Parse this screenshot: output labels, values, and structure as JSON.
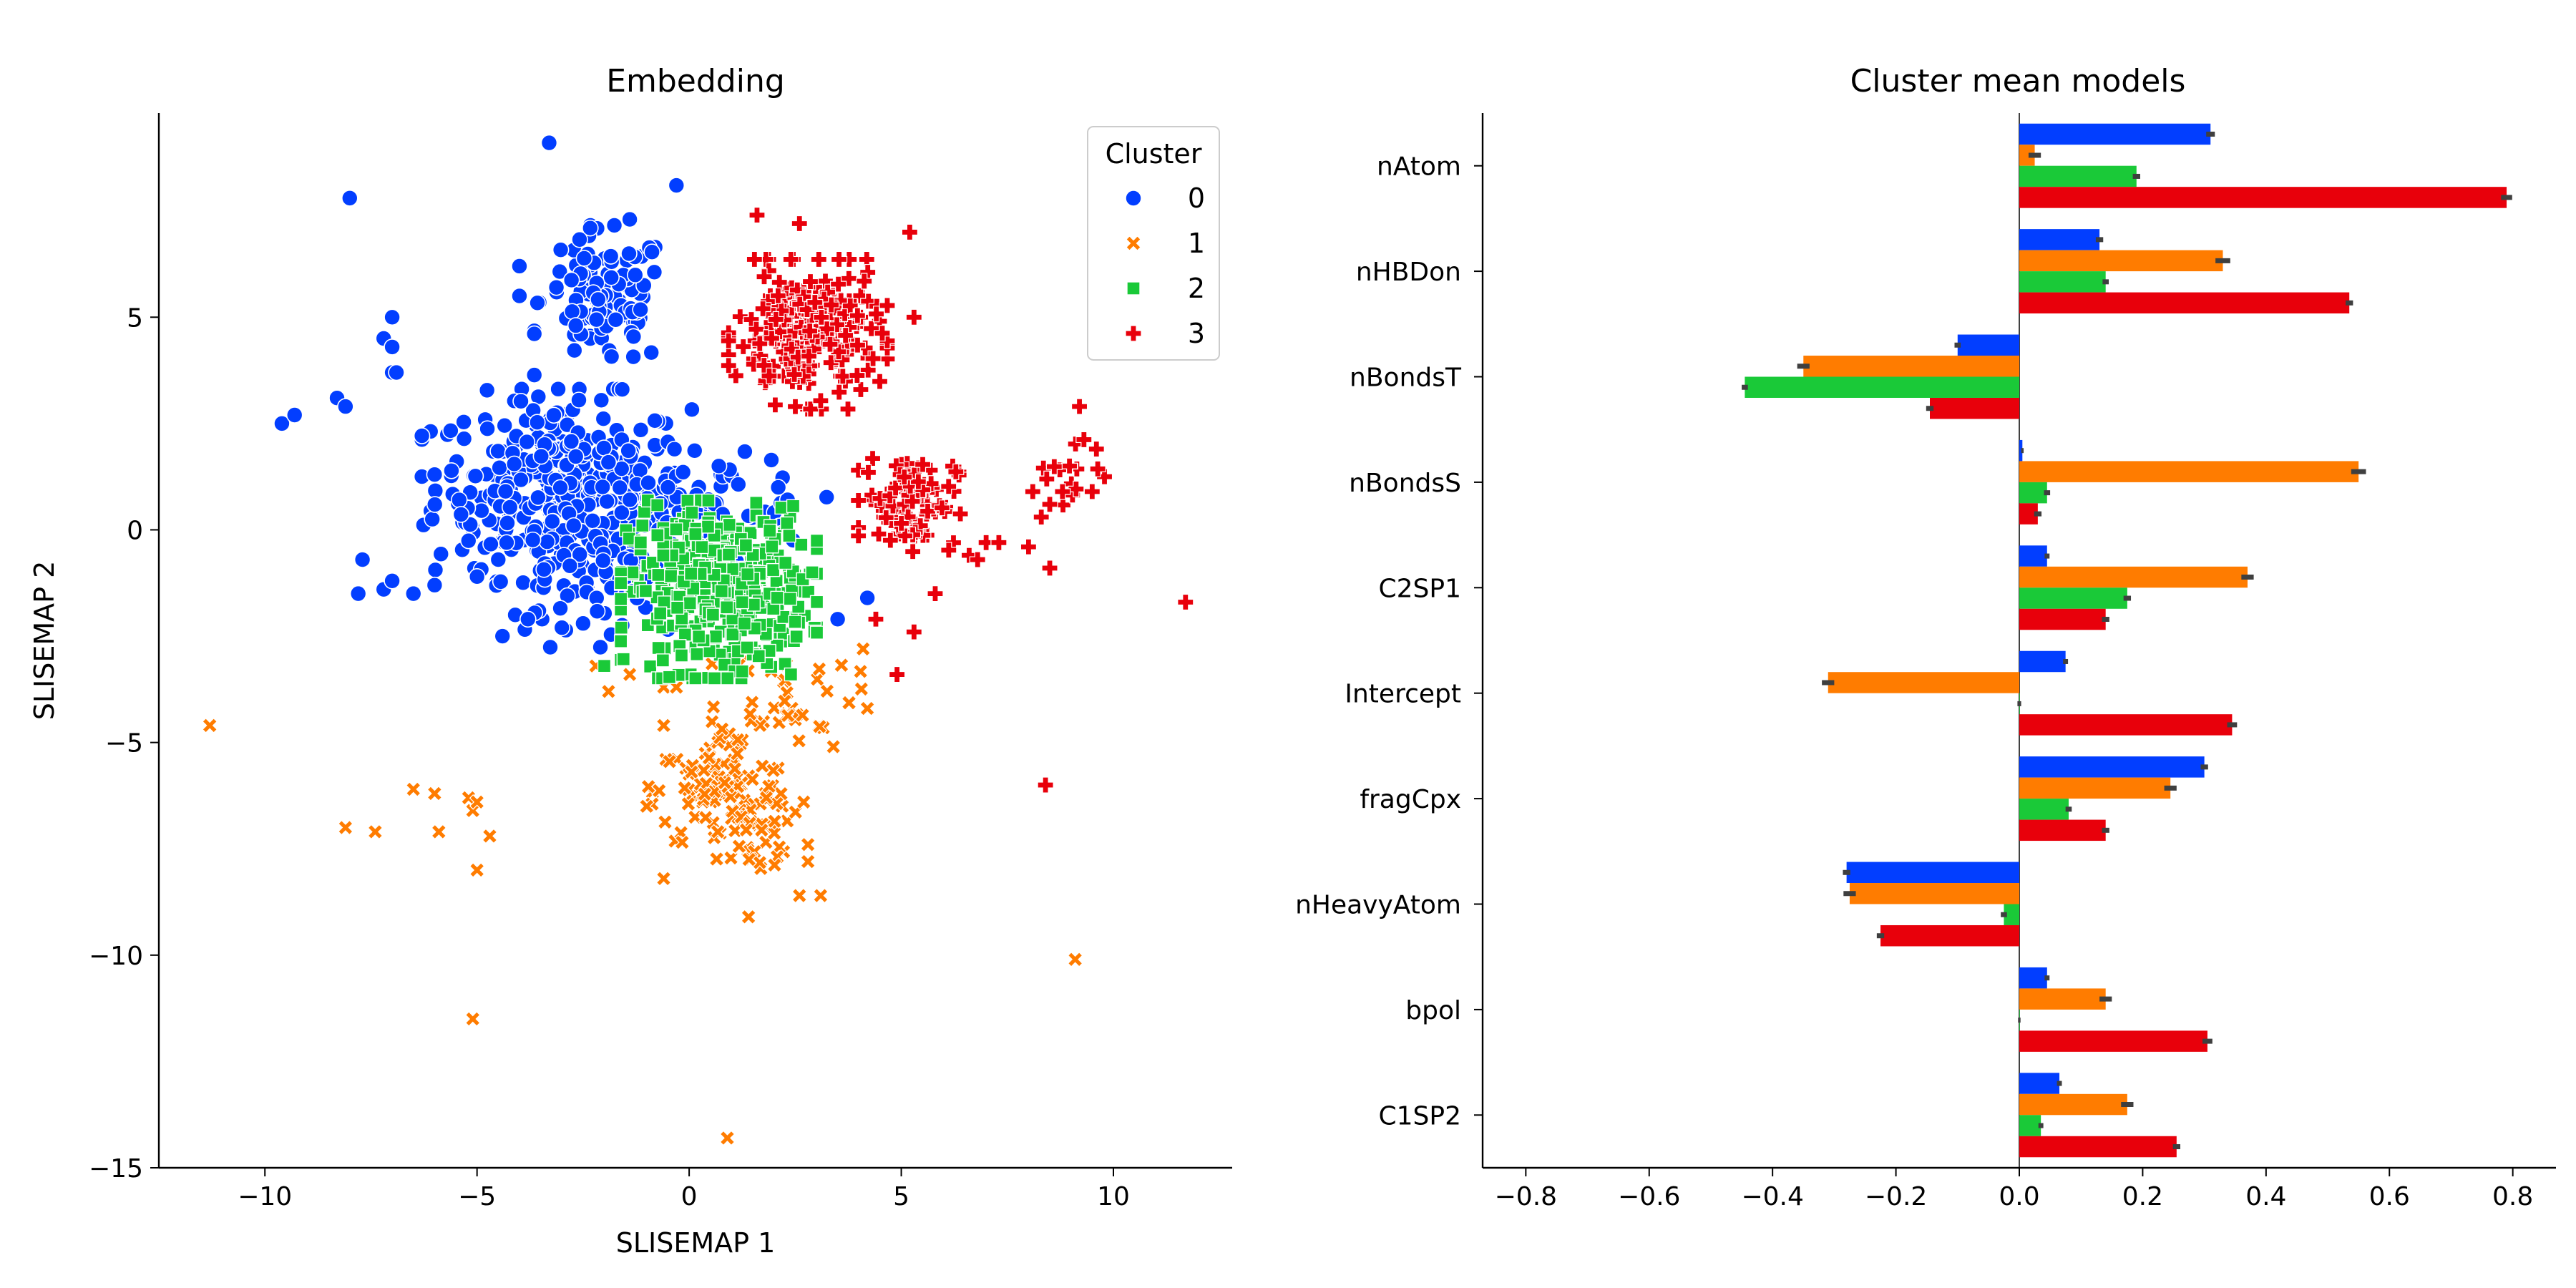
{
  "colors": {
    "0": "#023eff",
    "1": "#ff7c00",
    "2": "#1ac938",
    "3": "#e8000b"
  },
  "chart_data": [
    {
      "type": "scatter",
      "title": "Embedding",
      "xlabel": "SLISEMAP 1",
      "ylabel": "SLISEMAP 2",
      "xlim": [
        -12.5,
        12.8
      ],
      "ylim": [
        -15,
        9.8
      ],
      "xticks": [
        -10,
        -5,
        0,
        5,
        10
      ],
      "xtick_labels": [
        "−10",
        "−5",
        "0",
        "5",
        "10"
      ],
      "yticks": [
        -15,
        -10,
        -5,
        0,
        5
      ],
      "ytick_labels": [
        "−15",
        "−10",
        "−5",
        "0",
        "5"
      ],
      "legend": {
        "title": "Cluster",
        "position": "top-right",
        "entries": [
          {
            "label": "0",
            "marker": "circle"
          },
          {
            "label": "1",
            "marker": "x"
          },
          {
            "label": "2",
            "marker": "square"
          },
          {
            "label": "3",
            "marker": "plus"
          }
        ]
      },
      "series": [
        {
          "name": "0",
          "marker": "circle",
          "points": [
            [
              -3.3,
              9.1
            ],
            [
              -0.3,
              8.1
            ],
            [
              -8.0,
              7.8
            ],
            [
              -1.4,
              7.3
            ],
            [
              -7.0,
              5.0
            ],
            [
              -7.2,
              4.5
            ],
            [
              -7.0,
              4.3
            ],
            [
              -7.0,
              3.7
            ],
            [
              -6.9,
              3.7
            ],
            [
              -9.6,
              2.5
            ],
            [
              -9.3,
              2.7
            ],
            [
              -8.3,
              3.1
            ],
            [
              -8.1,
              2.9
            ],
            [
              -4.0,
              6.2
            ],
            [
              -4.0,
              5.5
            ],
            [
              -6.0,
              1.3
            ],
            [
              -7.7,
              -0.7
            ],
            [
              -7.8,
              -1.5
            ],
            [
              -7.2,
              -1.4
            ],
            [
              -7.0,
              -1.2
            ],
            [
              -6.5,
              -1.5
            ],
            [
              -6.0,
              -1.3
            ],
            [
              -5.0,
              -1.1
            ],
            [
              -4.5,
              -0.7
            ],
            [
              -4.4,
              -2.5
            ],
            [
              -4.1,
              -2.0
            ],
            [
              -3.8,
              -2.1
            ],
            [
              -3.0,
              -2.3
            ],
            [
              -2.5,
              -2.2
            ],
            [
              4.2,
              -1.6
            ],
            [
              3.5,
              -2.1
            ],
            [
              -0.5,
              1.0
            ],
            [
              0.7,
              1.5
            ],
            [
              2.1,
              1.0
            ]
          ],
          "clusters": [
            {
              "cx": -3.0,
              "cy": 1.0,
              "sx": 1.5,
              "sy": 1.05,
              "n": 340
            },
            {
              "cx": -2.0,
              "cy": 5.4,
              "sx": 0.75,
              "sy": 0.8,
              "n": 110
            },
            {
              "cx": 0.6,
              "cy": 0.3,
              "sx": 1.2,
              "sy": 0.7,
              "n": 70
            },
            {
              "cx": -2.7,
              "cy": -1.0,
              "sx": 1.0,
              "sy": 0.8,
              "n": 60
            }
          ]
        },
        {
          "name": "1",
          "marker": "x",
          "points": [
            [
              -11.3,
              -4.6
            ],
            [
              -8.1,
              -7.0
            ],
            [
              -7.4,
              -7.1
            ],
            [
              -6.5,
              -6.1
            ],
            [
              -6.0,
              -6.2
            ],
            [
              -5.9,
              -7.1
            ],
            [
              -5.2,
              -6.3
            ],
            [
              -5.1,
              -6.6
            ],
            [
              -5.0,
              -6.4
            ],
            [
              -4.7,
              -7.2
            ],
            [
              -5.0,
              -8.0
            ],
            [
              -5.1,
              -11.5
            ],
            [
              0.9,
              -14.3
            ],
            [
              9.1,
              -10.1
            ],
            [
              -2.2,
              -3.2
            ],
            [
              -1.9,
              -3.8
            ],
            [
              -1.4,
              -3.4
            ],
            [
              -0.6,
              -3.7
            ],
            [
              -0.3,
              -3.7
            ],
            [
              4.2,
              -4.2
            ],
            [
              4.1,
              -2.8
            ],
            [
              3.4,
              -5.1
            ],
            [
              3.1,
              -8.6
            ],
            [
              2.6,
              -8.6
            ],
            [
              2.8,
              -7.8
            ],
            [
              2.8,
              -7.4
            ],
            [
              1.4,
              -9.1
            ],
            [
              -0.6,
              -8.2
            ],
            [
              -1.0,
              -6.5
            ],
            [
              -0.6,
              -4.6
            ],
            [
              2.7,
              -6.4
            ]
          ],
          "clusters": [
            {
              "cx": 0.8,
              "cy": -6.2,
              "sx": 0.8,
              "sy": 0.7,
              "n": 110
            },
            {
              "cx": 2.3,
              "cy": -3.8,
              "sx": 0.8,
              "sy": 0.6,
              "n": 40
            },
            {
              "cx": 1.5,
              "cy": -7.4,
              "sx": 0.5,
              "sy": 0.5,
              "n": 25
            }
          ]
        },
        {
          "name": "2",
          "marker": "square",
          "points": [
            [
              -2.0,
              -3.2
            ],
            [
              -1.6,
              -2.3
            ],
            [
              2.4,
              -3.4
            ],
            [
              2.9,
              -1.0
            ]
          ],
          "clusters": [
            {
              "cx": 0.7,
              "cy": -1.4,
              "sx": 1.05,
              "sy": 0.95,
              "n": 420
            }
          ]
        },
        {
          "name": "3",
          "marker": "plus",
          "points": [
            [
              1.6,
              7.4
            ],
            [
              2.6,
              7.2
            ],
            [
              5.2,
              7.0
            ],
            [
              5.3,
              5.0
            ],
            [
              9.2,
              2.9
            ],
            [
              9.6,
              1.9
            ],
            [
              9.5,
              0.9
            ],
            [
              8.8,
              0.9
            ],
            [
              8.5,
              0.6
            ],
            [
              8.1,
              0.9
            ],
            [
              8.3,
              0.3
            ],
            [
              8.0,
              -0.4
            ],
            [
              7.0,
              -0.3
            ],
            [
              7.3,
              -0.3
            ],
            [
              6.6,
              -0.6
            ],
            [
              6.8,
              -0.7
            ],
            [
              8.5,
              -0.9
            ],
            [
              5.8,
              -1.5
            ],
            [
              5.3,
              -2.4
            ],
            [
              4.9,
              -3.4
            ],
            [
              4.4,
              -2.1
            ],
            [
              11.7,
              -1.7
            ],
            [
              8.4,
              -6.0
            ]
          ],
          "clusters": [
            {
              "cx": 2.8,
              "cy": 4.6,
              "sx": 0.85,
              "sy": 0.8,
              "n": 230
            },
            {
              "cx": 5.2,
              "cy": 0.7,
              "sx": 0.55,
              "sy": 0.55,
              "n": 95
            },
            {
              "cx": 8.8,
              "cy": 1.4,
              "sx": 0.45,
              "sy": 0.55,
              "n": 15
            }
          ]
        }
      ]
    },
    {
      "type": "bar",
      "orientation": "horizontal",
      "title": "Cluster mean models",
      "categories": [
        "nAtom",
        "nHBDon",
        "nBondsT",
        "nBondsS",
        "C2SP1",
        "Intercept",
        "fragCpx",
        "nHeavyAtom",
        "bpol",
        "C1SP2"
      ],
      "xlim": [
        -0.87,
        0.87
      ],
      "xticks": [
        -0.8,
        -0.6,
        -0.4,
        -0.2,
        0.0,
        0.2,
        0.4,
        0.6,
        0.8
      ],
      "xtick_labels": [
        "−0.8",
        "−0.6",
        "−0.4",
        "−0.2",
        "0.0",
        "0.2",
        "0.4",
        "0.6",
        "0.8"
      ],
      "series": [
        {
          "name": "0",
          "values": [
            0.31,
            0.13,
            -0.1,
            0.005,
            0.045,
            0.075,
            0.3,
            -0.28,
            0.045,
            0.065
          ],
          "errors": [
            0.007,
            0.006,
            0.005,
            0.002,
            0.004,
            0.004,
            0.006,
            0.006,
            0.004,
            0.004
          ]
        },
        {
          "name": "1",
          "values": [
            0.025,
            0.33,
            -0.35,
            0.55,
            0.37,
            -0.31,
            0.245,
            -0.275,
            0.14,
            0.175
          ],
          "errors": [
            0.01,
            0.012,
            0.01,
            0.012,
            0.01,
            0.01,
            0.01,
            0.01,
            0.01,
            0.01
          ]
        },
        {
          "name": "2",
          "values": [
            0.19,
            0.14,
            -0.445,
            0.045,
            0.175,
            0.0,
            0.08,
            -0.025,
            0.0,
            0.035
          ],
          "errors": [
            0.006,
            0.005,
            0.005,
            0.005,
            0.006,
            0.003,
            0.005,
            0.005,
            0.002,
            0.004
          ]
        },
        {
          "name": "3",
          "values": [
            0.79,
            0.535,
            -0.145,
            0.03,
            0.14,
            0.345,
            0.14,
            -0.225,
            0.305,
            0.255
          ],
          "errors": [
            0.009,
            0.006,
            0.006,
            0.006,
            0.006,
            0.008,
            0.006,
            0.006,
            0.008,
            0.006
          ]
        }
      ]
    }
  ]
}
